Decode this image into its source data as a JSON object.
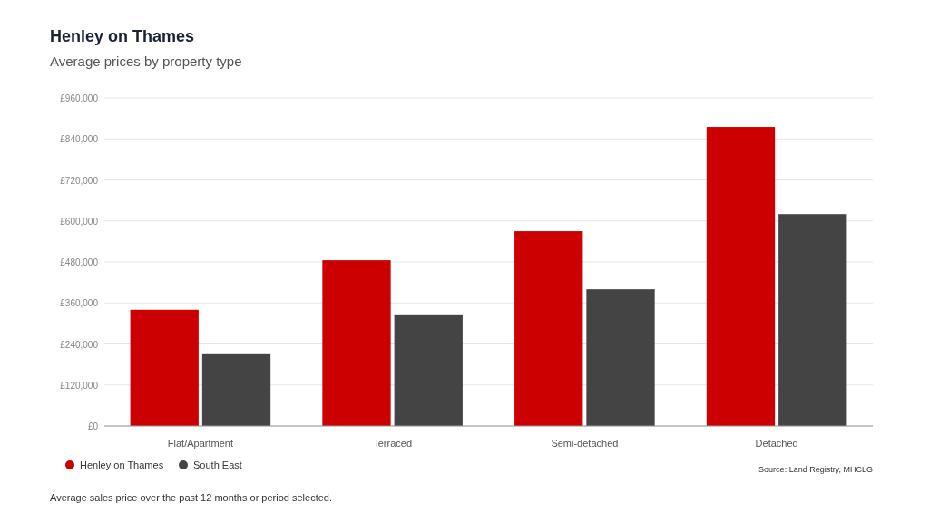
{
  "chart_data": {
    "type": "bar",
    "title": "Henley on Thames",
    "subtitle": "Average prices by property type",
    "categories": [
      "Flat/Apartment",
      "Terraced",
      "Semi-detached",
      "Detached"
    ],
    "series": [
      {
        "name": "Henley on Thames",
        "color": "#cc0000",
        "values": [
          340000,
          485000,
          570000,
          875000
        ]
      },
      {
        "name": "South East",
        "color": "#444444",
        "values": [
          210000,
          324000,
          400000,
          620000
        ]
      }
    ],
    "ylim": [
      0,
      960000
    ],
    "yticks": [
      {
        "value": 0,
        "label": "£0"
      },
      {
        "value": 120000,
        "label": "£120,000"
      },
      {
        "value": 240000,
        "label": "£240,000"
      },
      {
        "value": 360000,
        "label": "£360,000"
      },
      {
        "value": 480000,
        "label": "£480,000"
      },
      {
        "value": 600000,
        "label": "£600,000"
      },
      {
        "value": 720000,
        "label": "£720,000"
      },
      {
        "value": 840000,
        "label": "£840,000"
      },
      {
        "value": 960000,
        "label": "£960,000"
      }
    ],
    "grid": "y",
    "legend": "bottom left",
    "annotations": [
      "Source: Land Registry, MHCLG",
      "Average sales price over the past 12 months or period selected."
    ]
  }
}
